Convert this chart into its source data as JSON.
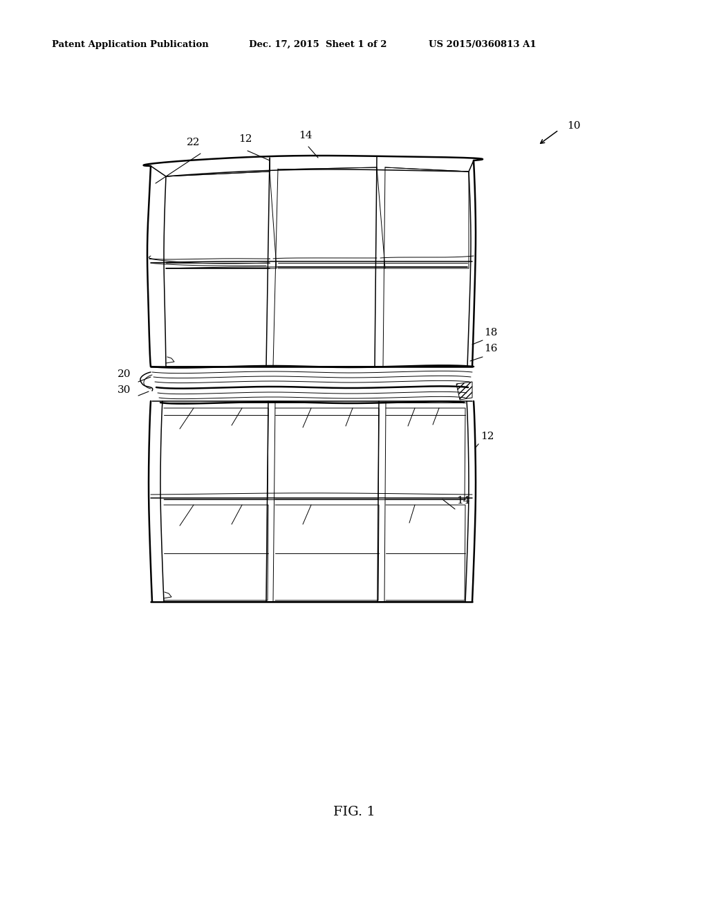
{
  "background_color": "#ffffff",
  "header_left": "Patent Application Publication",
  "header_mid": "Dec. 17, 2015  Sheet 1 of 2",
  "header_right": "US 2015/0360813 A1",
  "fig_label": "FIG. 1",
  "lw_outer": 1.8,
  "lw_inner": 1.1,
  "lw_thin": 0.7
}
